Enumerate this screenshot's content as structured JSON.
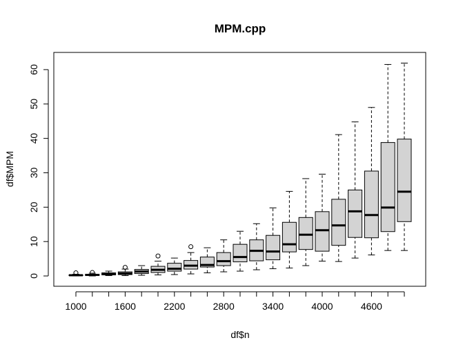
{
  "chart_data": {
    "type": "boxplot",
    "title": "MPM.cpp",
    "xlabel": "df$n",
    "ylabel": "df$MPM",
    "ylim": [
      -3,
      65
    ],
    "y_ticks": [
      0,
      10,
      20,
      30,
      40,
      50,
      60
    ],
    "categories": [
      1000,
      1200,
      1400,
      1600,
      1800,
      2000,
      2200,
      2400,
      2600,
      2800,
      3000,
      3200,
      3400,
      3600,
      3800,
      4000,
      4200,
      4400,
      4600,
      4800,
      5000
    ],
    "x_tick_labels": [
      "1000",
      "1600",
      "2200",
      "2800",
      "3400",
      "4000",
      "4600"
    ],
    "x_tick_categories": [
      1000,
      1600,
      2200,
      2800,
      3400,
      4000,
      4600
    ],
    "grid": false,
    "legend": "none",
    "box_fill": "#d3d3d3",
    "boxes": [
      {
        "n": 1000,
        "min": 0.0,
        "q1": 0.1,
        "median": 0.2,
        "q3": 0.3,
        "max": 0.5,
        "outliers": [
          0.9
        ]
      },
      {
        "n": 1200,
        "min": 0.0,
        "q1": 0.1,
        "median": 0.3,
        "q3": 0.5,
        "max": 0.8,
        "outliers": [
          1.0
        ]
      },
      {
        "n": 1400,
        "min": 0.1,
        "q1": 0.3,
        "median": 0.6,
        "q3": 0.9,
        "max": 1.4,
        "outliers": []
      },
      {
        "n": 1600,
        "min": 0.1,
        "q1": 0.4,
        "median": 0.7,
        "q3": 1.2,
        "max": 2.0,
        "outliers": [
          2.5
        ]
      },
      {
        "n": 1800,
        "min": 0.2,
        "q1": 0.7,
        "median": 1.3,
        "q3": 1.9,
        "max": 3.0,
        "outliers": []
      },
      {
        "n": 2000,
        "min": 0.3,
        "q1": 1.0,
        "median": 1.8,
        "q3": 2.8,
        "max": 4.3,
        "outliers": [
          5.8
        ]
      },
      {
        "n": 2200,
        "min": 0.4,
        "q1": 1.4,
        "median": 2.1,
        "q3": 3.7,
        "max": 5.2,
        "outliers": []
      },
      {
        "n": 2400,
        "min": 0.6,
        "q1": 2.0,
        "median": 3.0,
        "q3": 4.5,
        "max": 6.8,
        "outliers": [
          8.5
        ]
      },
      {
        "n": 2600,
        "min": 0.9,
        "q1": 2.6,
        "median": 3.2,
        "q3": 5.5,
        "max": 8.2,
        "outliers": []
      },
      {
        "n": 2800,
        "min": 1.2,
        "q1": 3.0,
        "median": 4.3,
        "q3": 6.8,
        "max": 10.5,
        "outliers": []
      },
      {
        "n": 3000,
        "min": 1.4,
        "q1": 4.1,
        "median": 5.5,
        "q3": 9.2,
        "max": 13.0,
        "outliers": []
      },
      {
        "n": 3200,
        "min": 1.8,
        "q1": 4.4,
        "median": 7.3,
        "q3": 10.5,
        "max": 15.2,
        "outliers": []
      },
      {
        "n": 3400,
        "min": 2.1,
        "q1": 4.7,
        "median": 7.1,
        "q3": 11.8,
        "max": 19.8,
        "outliers": []
      },
      {
        "n": 3600,
        "min": 2.3,
        "q1": 7.0,
        "median": 9.2,
        "q3": 15.6,
        "max": 24.6,
        "outliers": []
      },
      {
        "n": 3800,
        "min": 3.0,
        "q1": 7.7,
        "median": 12.0,
        "q3": 17.0,
        "max": 28.3,
        "outliers": []
      },
      {
        "n": 4000,
        "min": 4.3,
        "q1": 7.2,
        "median": 13.3,
        "q3": 18.7,
        "max": 29.6,
        "outliers": []
      },
      {
        "n": 4200,
        "min": 4.2,
        "q1": 8.9,
        "median": 14.7,
        "q3": 22.3,
        "max": 41.1,
        "outliers": []
      },
      {
        "n": 4400,
        "min": 5.2,
        "q1": 11.2,
        "median": 18.8,
        "q3": 25.0,
        "max": 44.8,
        "outliers": []
      },
      {
        "n": 4600,
        "min": 6.1,
        "q1": 11.1,
        "median": 17.7,
        "q3": 30.5,
        "max": 49.0,
        "outliers": []
      },
      {
        "n": 4800,
        "min": 7.4,
        "q1": 12.9,
        "median": 19.9,
        "q3": 38.8,
        "max": 61.5,
        "outliers": []
      },
      {
        "n": 5000,
        "min": 7.4,
        "q1": 15.8,
        "median": 24.5,
        "q3": 39.8,
        "max": 61.9,
        "outliers": []
      }
    ]
  }
}
